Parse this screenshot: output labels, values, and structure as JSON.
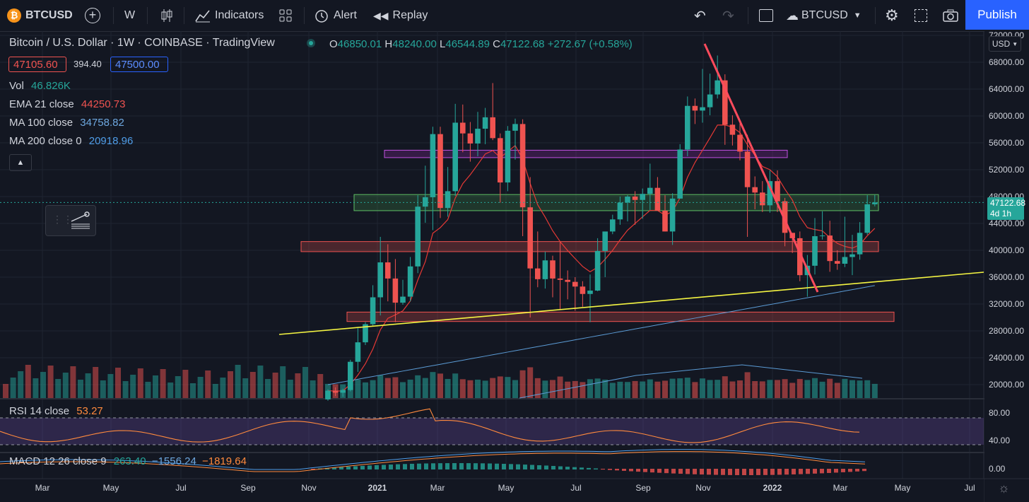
{
  "toolbar": {
    "symbol": "BTCUSD",
    "interval": "W",
    "indicators_label": "Indicators",
    "alert_label": "Alert",
    "replay_label": "Replay",
    "compare_symbol": "BTCUSD",
    "publish_label": "Publish"
  },
  "legend": {
    "title": "Bitcoin / U.S. Dollar · 1W · COINBASE · TradingView",
    "ohlc_o_label": "O",
    "ohlc_o": "46850.01",
    "ohlc_h_label": "H",
    "ohlc_h": "48240.00",
    "ohlc_l_label": "L",
    "ohlc_l": "46544.89",
    "ohlc_c_label": "C",
    "ohlc_c": "47122.68",
    "ohlc_change": "+272.67 (+0.58%)",
    "bid": "47105.60",
    "spread": "394.40",
    "ask": "47500.00",
    "vol_label": "Vol",
    "vol_value": "46.826K",
    "ema_label": "EMA 21 close",
    "ema_value": "44250.73",
    "ma100_label": "MA 100 close",
    "ma100_value": "34758.82",
    "ma200_label": "MA 200 close 0",
    "ma200_value": "20918.96",
    "rsi_label": "RSI 14 close",
    "rsi_value": "53.27",
    "macd_label": "MACD 12 26 close 9",
    "macd_v1": "263.40",
    "macd_v2": "−1556.24",
    "macd_v3": "−1819.64"
  },
  "price_axis": {
    "currency": "USD",
    "ticks": [
      "72000.00",
      "68000.00",
      "64000.00",
      "60000.00",
      "56000.00",
      "52000.00",
      "48000.00",
      "44000.00",
      "40000.00",
      "36000.00",
      "32000.00",
      "28000.00",
      "24000.00",
      "20000.00"
    ],
    "last_price": "47122.68",
    "countdown": "4d 1h",
    "rsi_ticks": [
      "80.00",
      "40.00"
    ],
    "macd_ticks": [
      "0.00"
    ]
  },
  "time_axis": [
    "Mar",
    "May",
    "Jul",
    "Sep",
    "Nov",
    "2021",
    "Mar",
    "May",
    "Jul",
    "Sep",
    "Nov",
    "2022",
    "Mar",
    "May",
    "Jul"
  ],
  "colors": {
    "up": "#26a69a",
    "down": "#ef5350",
    "ema": "#e53935",
    "ma100": "#5b9bd5",
    "ma200": "#5b9bd5",
    "trend_yellow": "#f5f542",
    "trend_red": "#ff4b5c",
    "rsi": "#ff8a3d",
    "publish": "#2962ff"
  },
  "chart_data": {
    "type": "candlestick",
    "symbol": "BTCUSD",
    "timeframe": "1W",
    "ylim": [
      18000,
      72000
    ],
    "candles_ohlc": [
      [
        17800,
        19300,
        17600,
        19100
      ],
      [
        19100,
        19600,
        18300,
        18800
      ],
      [
        18800,
        19400,
        18200,
        19200
      ],
      [
        19200,
        23700,
        19000,
        23400
      ],
      [
        23400,
        28400,
        21900,
        26300
      ],
      [
        26300,
        29300,
        25900,
        29000
      ],
      [
        29000,
        34800,
        28800,
        33000
      ],
      [
        33000,
        42000,
        30300,
        38200
      ],
      [
        38200,
        40900,
        32400,
        35800
      ],
      [
        35800,
        38700,
        29300,
        32200
      ],
      [
        32200,
        35600,
        31900,
        33100
      ],
      [
        33100,
        39000,
        32400,
        37600
      ],
      [
        37600,
        48200,
        36600,
        46500
      ],
      [
        46500,
        52600,
        44100,
        47900
      ],
      [
        47900,
        58400,
        43000,
        57300
      ],
      [
        57300,
        58400,
        44800,
        46300
      ],
      [
        46300,
        52400,
        45000,
        48800
      ],
      [
        48800,
        61800,
        48100,
        59000
      ],
      [
        59000,
        61700,
        54600,
        57400
      ],
      [
        57400,
        59100,
        53200,
        55900
      ],
      [
        55900,
        60600,
        54000,
        58100
      ],
      [
        58100,
        61200,
        55800,
        59800
      ],
      [
        59800,
        64900,
        56400,
        56700
      ],
      [
        56700,
        57400,
        47100,
        50100
      ],
      [
        50100,
        58500,
        48800,
        57800
      ],
      [
        57800,
        59600,
        53500,
        58800
      ],
      [
        58800,
        59500,
        42100,
        46400
      ],
      [
        46400,
        50900,
        30000,
        37300
      ],
      [
        37300,
        42800,
        34500,
        35700
      ],
      [
        35700,
        39800,
        34300,
        38500
      ],
      [
        38500,
        39200,
        33000,
        35800
      ],
      [
        35800,
        41300,
        31100,
        35600
      ],
      [
        35600,
        37000,
        32700,
        35300
      ],
      [
        35300,
        36000,
        31000,
        34600
      ],
      [
        34600,
        35400,
        31600,
        33500
      ],
      [
        33500,
        36400,
        29300,
        34000
      ],
      [
        34000,
        41800,
        33900,
        39900
      ],
      [
        39900,
        42600,
        36000,
        42800
      ],
      [
        42800,
        45300,
        42400,
        44600
      ],
      [
        44600,
        48000,
        43800,
        47100
      ],
      [
        47100,
        48200,
        44300,
        48000
      ],
      [
        48000,
        48800,
        43800,
        47500
      ],
      [
        47500,
        49200,
        44700,
        48400
      ],
      [
        48400,
        52900,
        46000,
        49300
      ],
      [
        49300,
        50900,
        46600,
        45900
      ],
      [
        45900,
        48200,
        42800,
        42800
      ],
      [
        42800,
        48500,
        40800,
        47700
      ],
      [
        47700,
        55800,
        47700,
        55000
      ],
      [
        55000,
        62900,
        54000,
        61500
      ],
      [
        61500,
        62600,
        58800,
        60800
      ],
      [
        60800,
        67000,
        59000,
        61300
      ],
      [
        61300,
        66300,
        60100,
        63200
      ],
      [
        63200,
        69000,
        62600,
        65300
      ],
      [
        65300,
        66200,
        55700,
        58700
      ],
      [
        58700,
        60100,
        55600,
        57200
      ],
      [
        57200,
        59100,
        53400,
        54700
      ],
      [
        54700,
        57200,
        42000,
        49400
      ],
      [
        49400,
        51000,
        46100,
        48600
      ],
      [
        48600,
        50300,
        45700,
        46700
      ],
      [
        46700,
        51900,
        45600,
        50300
      ],
      [
        50300,
        51900,
        45700,
        47300
      ],
      [
        47300,
        47800,
        40600,
        42600
      ],
      [
        42600,
        42500,
        39600,
        41800
      ],
      [
        41800,
        42800,
        35400,
        36300
      ],
      [
        36300,
        39300,
        33100,
        37700
      ],
      [
        37700,
        44800,
        36400,
        42100
      ],
      [
        42100,
        45800,
        41600,
        42200
      ],
      [
        42200,
        44400,
        36800,
        38400
      ],
      [
        38400,
        40000,
        37100,
        38000
      ],
      [
        38000,
        45000,
        37500,
        39000
      ],
      [
        39000,
        42300,
        36300,
        39400
      ],
      [
        39400,
        44200,
        38600,
        42600
      ],
      [
        42600,
        48200,
        42300,
        46850
      ],
      [
        46850,
        48240,
        46544,
        47122
      ]
    ],
    "overlays": {
      "ema21_last": 44250.73,
      "ma100_last": 34758.82,
      "ma200_last": 20918.96
    },
    "zones": [
      {
        "low": 53800,
        "high": 54900,
        "color": "purple"
      },
      {
        "low": 45900,
        "high": 48300,
        "color": "green"
      },
      {
        "low": 39800,
        "high": 41300,
        "color": "red"
      },
      {
        "low": 29400,
        "high": 30800,
        "color": "red"
      }
    ],
    "rsi": {
      "last": 53.27,
      "levels": [
        70,
        30
      ]
    },
    "macd": {
      "macd": 263.4,
      "signal": -1556.24,
      "hist": -1819.64
    }
  }
}
